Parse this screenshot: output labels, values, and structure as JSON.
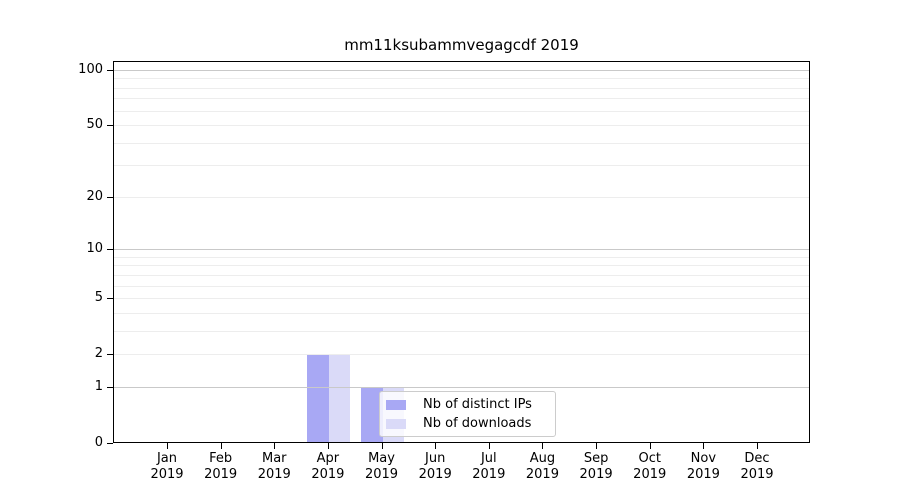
{
  "title": "mm11ksubammvegagcdf 2019",
  "chart_data": {
    "type": "bar",
    "title": "mm11ksubammvegagcdf 2019",
    "categories": [
      "Jan",
      "Feb",
      "Mar",
      "Apr",
      "May",
      "Jun",
      "Jul",
      "Aug",
      "Sep",
      "Oct",
      "Nov",
      "Dec"
    ],
    "year": "2019",
    "series": [
      {
        "name": "Nb of distinct IPs",
        "color": "#a8a8f4",
        "values": [
          0,
          0,
          0,
          2,
          1,
          0,
          0,
          0,
          0,
          0,
          0,
          0
        ]
      },
      {
        "name": "Nb of downloads",
        "color": "#dadaf8",
        "values": [
          0,
          0,
          0,
          2,
          1,
          0,
          0,
          0,
          0,
          0,
          0,
          0
        ]
      }
    ],
    "yticks": [
      0,
      1,
      2,
      5,
      10,
      20,
      50,
      100
    ],
    "yscale": "log1p",
    "ylim": [
      0,
      110
    ],
    "grid": "horizontal",
    "grid_major_values": [
      1,
      10,
      100
    ],
    "grid_minor_values": [
      2,
      3,
      4,
      5,
      6,
      7,
      8,
      9,
      20,
      30,
      40,
      50,
      60,
      70,
      80,
      90
    ],
    "legend_position": "lower-center",
    "colors": {
      "major_grid": "#c9c9c9",
      "minor_grid": "#ededed",
      "axis": "#000000"
    }
  }
}
